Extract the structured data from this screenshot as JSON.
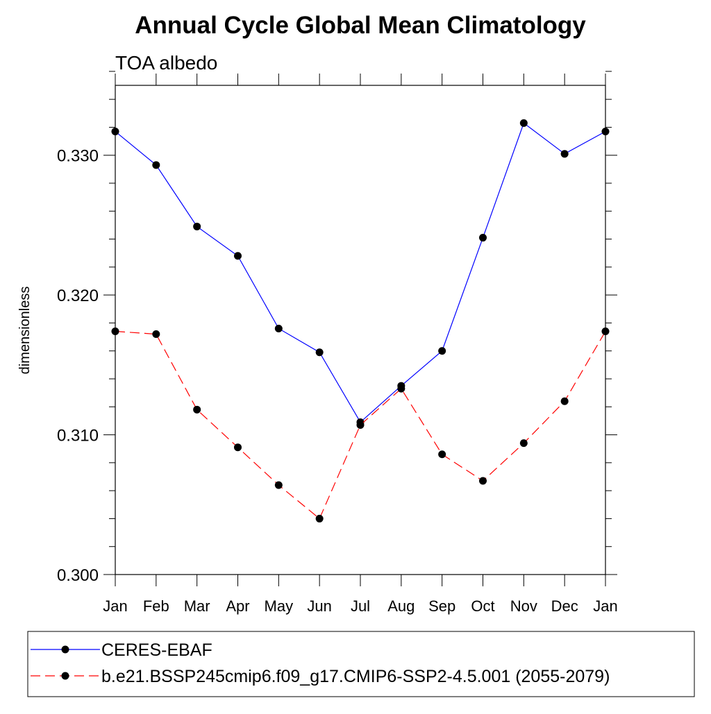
{
  "chart_data": {
    "type": "line",
    "title": "Annual Cycle Global Mean Climatology",
    "subtitle": "TOA albedo",
    "xlabel": "",
    "ylabel": "dimensionless",
    "ylim": [
      0.3,
      0.335
    ],
    "yticks": [
      "0.300",
      "0.310",
      "0.320",
      "0.330"
    ],
    "ytick_values": [
      0.3,
      0.31,
      0.32,
      0.33
    ],
    "yminor_step": 0.002,
    "categories": [
      "Jan",
      "Feb",
      "Mar",
      "Apr",
      "May",
      "Jun",
      "Jul",
      "Aug",
      "Sep",
      "Oct",
      "Nov",
      "Dec",
      "Jan"
    ],
    "series": [
      {
        "name": "CERES-EBAF",
        "color": "#0000ff",
        "dash": "solid",
        "values": [
          0.3317,
          0.3293,
          0.3249,
          0.3228,
          0.3176,
          0.3159,
          0.3109,
          0.3135,
          0.316,
          0.3241,
          0.3323,
          0.3301,
          0.3317
        ]
      },
      {
        "name": "b.e21.BSSP245cmip6.f09_g17.CMIP6-SSP2-4.5.001 (2055-2079)",
        "color": "#ff0000",
        "dash": "dashed",
        "values": [
          0.3174,
          0.3172,
          0.3118,
          0.3091,
          0.3064,
          0.304,
          0.3107,
          0.3133,
          0.3086,
          0.3067,
          0.3094,
          0.3124,
          0.3174
        ]
      }
    ],
    "legend_position": "bottom",
    "marker": "filled-circle",
    "marker_color": "#000000"
  }
}
